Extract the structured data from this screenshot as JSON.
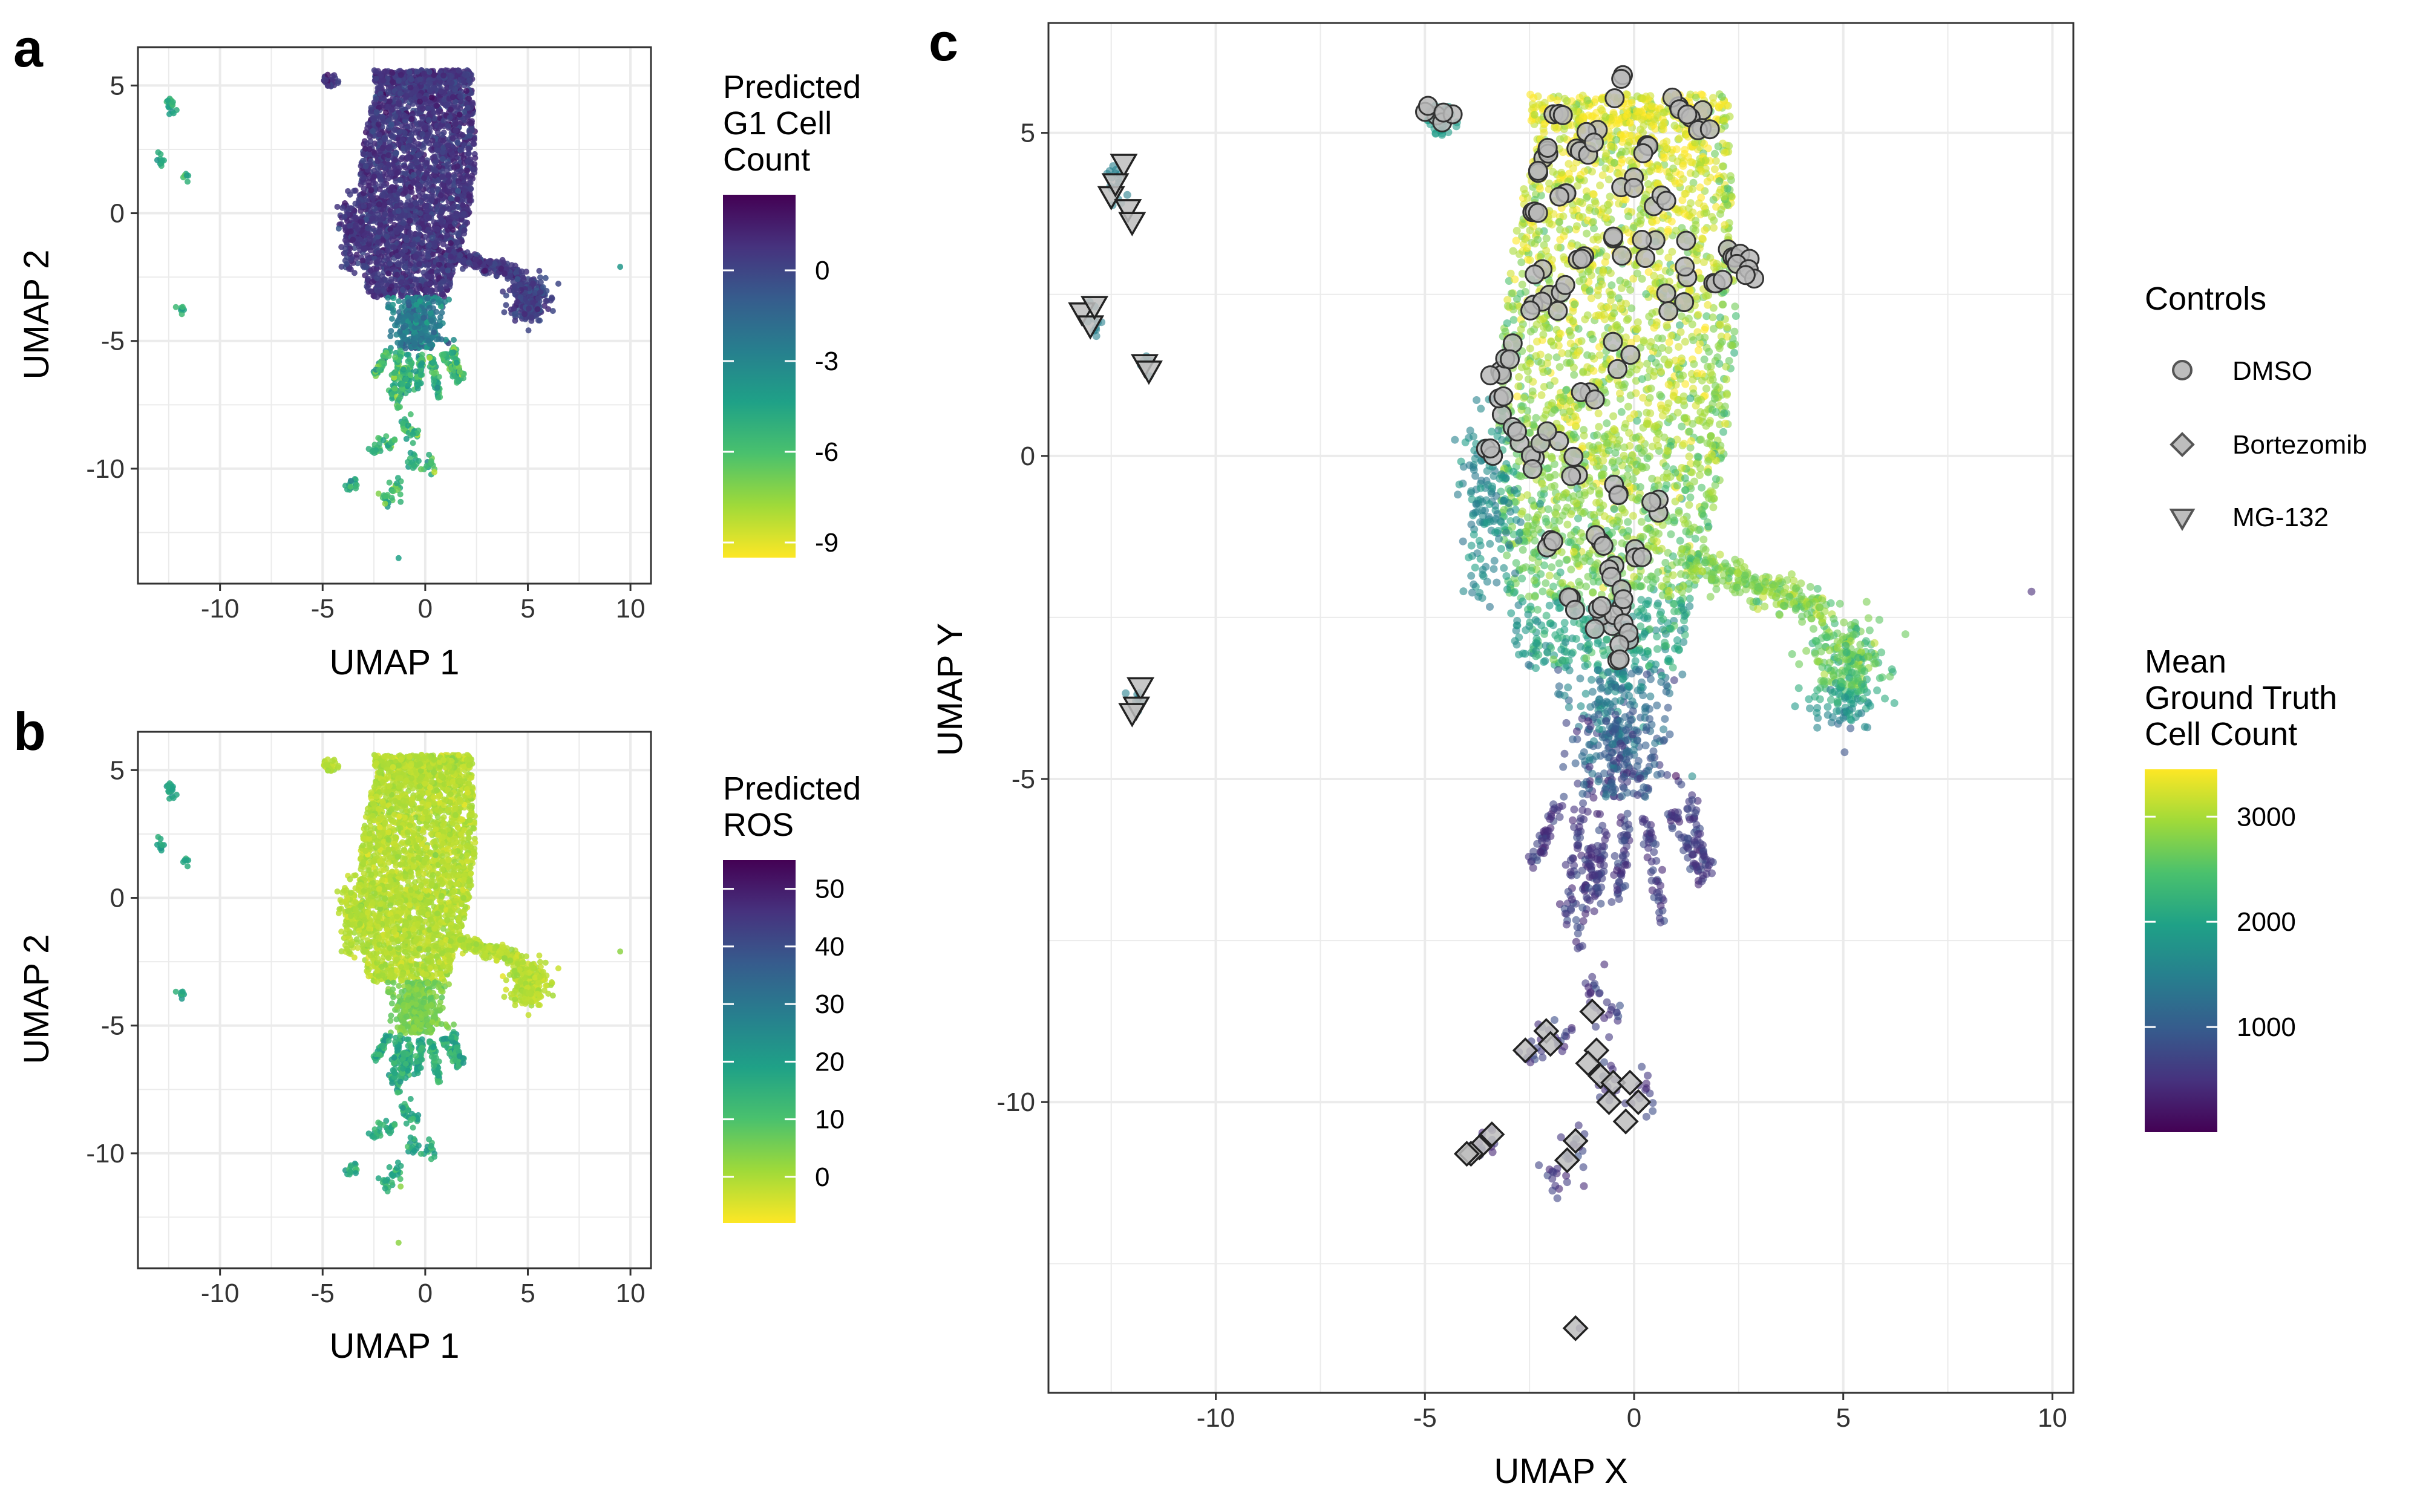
{
  "panels": {
    "a": {
      "letter": "a"
    },
    "b": {
      "letter": "b"
    },
    "c": {
      "letter": "c"
    }
  },
  "chart_data": [
    {
      "panel": "a",
      "type": "scatter",
      "xlabel": "UMAP 1",
      "ylabel": "UMAP 2",
      "xlim": [
        -14,
        11
      ],
      "ylim": [
        -14.5,
        6.5
      ],
      "xticks": [
        -10,
        -5,
        0,
        5,
        10
      ],
      "yticks": [
        5,
        0,
        -5,
        -10
      ],
      "grid": true,
      "legend": {
        "title": [
          "Predicted",
          "G1 Cell",
          "Count"
        ],
        "type": "colorbar",
        "range": [
          -9.5,
          2.5
        ],
        "ticks": [
          0,
          -3,
          -6,
          -9
        ],
        "colors": [
          "#fde725",
          "#a0da39",
          "#4ac16d",
          "#1fa187",
          "#277f8e",
          "#365c8d",
          "#46327e",
          "#440154"
        ],
        "placement": "right"
      }
    },
    {
      "panel": "b",
      "type": "scatter",
      "xlabel": "UMAP 1",
      "ylabel": "UMAP 2",
      "xlim": [
        -14,
        11
      ],
      "ylim": [
        -14.5,
        6.5
      ],
      "xticks": [
        -10,
        -5,
        0,
        5,
        10
      ],
      "yticks": [
        5,
        0,
        -5,
        -10
      ],
      "grid": true,
      "legend": {
        "title": [
          "Predicted",
          "ROS"
        ],
        "type": "colorbar",
        "range": [
          -8,
          55
        ],
        "ticks": [
          50,
          40,
          30,
          20,
          10,
          0
        ],
        "colors": [
          "#fde725",
          "#a0da39",
          "#4ac16d",
          "#1fa187",
          "#277f8e",
          "#365c8d",
          "#46327e",
          "#440154"
        ],
        "placement": "right"
      }
    },
    {
      "panel": "c",
      "type": "scatter",
      "xlabel": "UMAP X",
      "ylabel": "UMAP Y",
      "xlim": [
        -14,
        10.5
      ],
      "ylim": [
        -14.5,
        6.7
      ],
      "xticks": [
        -10,
        -5,
        0,
        5,
        10
      ],
      "yticks": [
        5,
        0,
        -5,
        -10
      ],
      "grid": true,
      "controls_legend": {
        "title": "Controls",
        "items": [
          {
            "label": "DMSO",
            "shape": "circle"
          },
          {
            "label": "Bortezomib",
            "shape": "diamond"
          },
          {
            "label": "MG-132",
            "shape": "triangle-down"
          }
        ]
      },
      "colorbar": {
        "title": [
          "Mean",
          "Ground Truth",
          "Cell Count"
        ],
        "range": [
          0,
          3450
        ],
        "ticks": [
          3000,
          2000,
          1000
        ],
        "colors": [
          "#440154",
          "#46327e",
          "#365c8d",
          "#277f8e",
          "#1fa187",
          "#4ac16d",
          "#a0da39",
          "#fde725"
        ],
        "placement": "right"
      },
      "controls": {
        "MG-132": [
          [
            -12.2,
            4.5
          ],
          [
            -12.5,
            4.0
          ],
          [
            -12.1,
            3.8
          ],
          [
            -12.0,
            3.6
          ],
          [
            -12.4,
            4.2
          ],
          [
            -13.2,
            2.2
          ],
          [
            -13.0,
            2.0
          ],
          [
            -12.9,
            2.3
          ],
          [
            -11.7,
            1.4
          ],
          [
            -11.6,
            1.3
          ],
          [
            -11.8,
            -3.6
          ],
          [
            -11.9,
            -3.9
          ],
          [
            -12.0,
            -4.0
          ]
        ],
        "Bortezomib": [
          [
            -2.6,
            -9.2
          ],
          [
            -2.1,
            -8.9
          ],
          [
            -2.0,
            -9.1
          ],
          [
            -1.0,
            -8.6
          ],
          [
            -0.9,
            -9.2
          ],
          [
            -1.1,
            -9.4
          ],
          [
            -0.8,
            -9.6
          ],
          [
            -0.5,
            -9.7
          ],
          [
            -0.1,
            -9.7
          ],
          [
            0.1,
            -10.0
          ],
          [
            -0.2,
            -10.3
          ],
          [
            -0.6,
            -10.0
          ],
          [
            -1.4,
            -10.6
          ],
          [
            -1.6,
            -10.9
          ],
          [
            -3.4,
            -10.5
          ],
          [
            -3.7,
            -10.7
          ],
          [
            -3.9,
            -10.8
          ],
          [
            -4.0,
            -10.8
          ],
          [
            -1.4,
            -13.5
          ]
        ],
        "DMSO": [
          [
            -4.8,
            5.2
          ],
          [
            -4.5,
            5.2
          ],
          [
            -0.3,
            5.7
          ],
          [
            0.9,
            5.4
          ],
          [
            1.3,
            5.4
          ],
          [
            -1.8,
            5.3
          ],
          [
            -2.3,
            4.5
          ],
          [
            -2.1,
            4.7
          ],
          [
            -1.2,
            4.6
          ],
          [
            0.2,
            4.8
          ],
          [
            -0.9,
            5.0
          ],
          [
            1.6,
            5.0
          ],
          [
            2.3,
            3.2
          ],
          [
            2.6,
            3.0
          ],
          [
            2.1,
            2.7
          ],
          [
            -2.3,
            2.8
          ],
          [
            -1.8,
            2.6
          ],
          [
            -2.5,
            2.3
          ],
          [
            -1.3,
            3.0
          ],
          [
            -0.5,
            3.3
          ],
          [
            0.3,
            3.2
          ],
          [
            0.8,
            2.5
          ],
          [
            -3.4,
            1.3
          ],
          [
            -3.2,
            0.8
          ],
          [
            -2.9,
            0.3
          ],
          [
            -3.5,
            0.1
          ],
          [
            -2.5,
            -0.1
          ],
          [
            -2.0,
            0.3
          ],
          [
            -1.4,
            -0.2
          ],
          [
            -0.8,
            -1.3
          ],
          [
            -0.5,
            -1.8
          ],
          [
            -0.3,
            -2.2
          ],
          [
            -0.6,
            -2.5
          ],
          [
            -0.2,
            -2.7
          ],
          [
            -0.9,
            -2.4
          ],
          [
            -0.5,
            -3.0
          ],
          [
            0.2,
            -1.5
          ],
          [
            -0.4,
            -0.7
          ],
          [
            -1.0,
            1.0
          ],
          [
            -0.3,
            1.6
          ],
          [
            -2.0,
            -1.3
          ],
          [
            -1.5,
            -2.3
          ],
          [
            -3.0,
            1.6
          ],
          [
            0.5,
            -0.8
          ],
          [
            -1.7,
            4.0
          ],
          [
            -2.4,
            3.8
          ],
          [
            0.6,
            3.8
          ],
          [
            -0.1,
            4.2
          ],
          [
            1.2,
            2.9
          ],
          [
            2.8,
            2.9
          ]
        ]
      }
    }
  ]
}
